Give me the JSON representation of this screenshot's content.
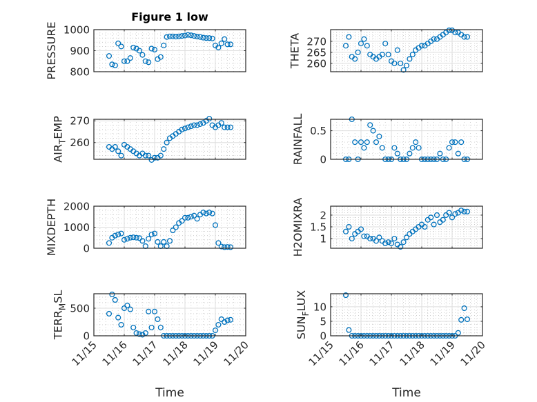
{
  "figure_title": "Figure 1 low",
  "marker_color": "#0072BD",
  "chart_data": {
    "type": "scatter",
    "xlabel": "Time",
    "x_ticks": [
      "11/15",
      "11/16",
      "11/17",
      "11/18",
      "11/19",
      "11/20"
    ],
    "x_unit": "days since 11/15",
    "xlim": [
      0,
      5
    ],
    "x": [
      0.5,
      0.6,
      0.7,
      0.8,
      0.9,
      1.0,
      1.1,
      1.2,
      1.3,
      1.4,
      1.5,
      1.6,
      1.7,
      1.8,
      1.9,
      2.0,
      2.1,
      2.2,
      2.3,
      2.4,
      2.5,
      2.6,
      2.7,
      2.8,
      2.9,
      3.0,
      3.1,
      3.2,
      3.3,
      3.4,
      3.5,
      3.6,
      3.7,
      3.8,
      3.9,
      4.0,
      4.1,
      4.2,
      4.3,
      4.4,
      4.5
    ],
    "grid": "on (major + minor)",
    "subplots": [
      {
        "ylabel": "PRESSURE",
        "column": "left",
        "row": 1,
        "ylim": [
          800,
          1000
        ],
        "yticks": [
          800,
          900,
          1000
        ],
        "values": [
          875,
          835,
          830,
          935,
          920,
          850,
          850,
          865,
          915,
          910,
          900,
          880,
          850,
          845,
          910,
          905,
          860,
          870,
          925,
          965,
          968,
          968,
          967,
          968,
          970,
          972,
          975,
          973,
          970,
          967,
          965,
          962,
          960,
          960,
          958,
          925,
          915,
          935,
          955,
          930,
          930
        ]
      },
      {
        "ylabel": "THETA",
        "column": "right",
        "row": 1,
        "ylim": [
          256.2,
          275.3
        ],
        "yticks": [
          260,
          265,
          270
        ],
        "values": [
          268,
          272,
          263,
          262,
          265,
          269,
          271,
          268,
          264,
          263,
          262,
          263,
          264,
          269,
          264,
          261,
          260,
          266,
          260,
          257,
          259,
          262,
          264,
          266,
          267,
          268,
          268,
          269,
          270,
          271,
          271,
          272,
          273,
          274,
          275,
          275,
          274,
          274,
          273,
          272,
          272
        ]
      },
      {
        "ylabel": "AIR_TEMP",
        "column": "left",
        "row": 2,
        "ylim": [
          252.3,
          270.7
        ],
        "yticks": [
          260,
          270
        ],
        "values": [
          258,
          257,
          258,
          256,
          254,
          259,
          258,
          257,
          256,
          255,
          254,
          255,
          254,
          254,
          252,
          253,
          253,
          254,
          257,
          260,
          262,
          263,
          264,
          265,
          266,
          266.5,
          267,
          267.5,
          268,
          268,
          268.5,
          269,
          270,
          271,
          268,
          267,
          268,
          269,
          267,
          267,
          267
        ]
      },
      {
        "ylabel": "RAINFALL",
        "column": "right",
        "row": 2,
        "ylim": [
          0,
          0.7
        ],
        "yticks": [
          0,
          0.5
        ],
        "values": [
          0,
          0,
          0.7,
          0.3,
          0,
          0.3,
          0.2,
          0.3,
          0.6,
          0.5,
          0.3,
          0.4,
          0.2,
          0,
          0,
          0,
          0.2,
          0.1,
          0,
          0,
          0,
          0.1,
          0.2,
          0.3,
          0.2,
          0,
          0,
          0,
          0,
          0,
          0,
          0.1,
          0,
          0,
          0.2,
          0.3,
          0.3,
          0.1,
          0.3,
          0,
          0
        ]
      },
      {
        "ylabel": "MIXDEPTH",
        "column": "left",
        "row": 3,
        "ylim": [
          0,
          2000
        ],
        "yticks": [
          0,
          1000,
          2000
        ],
        "values": [
          250,
          500,
          600,
          650,
          700,
          400,
          450,
          500,
          520,
          500,
          480,
          350,
          100,
          450,
          650,
          700,
          300,
          100,
          300,
          100,
          350,
          850,
          1000,
          1200,
          1300,
          1450,
          1450,
          1500,
          1550,
          1400,
          1600,
          1700,
          1650,
          1700,
          1650,
          1100,
          250,
          80,
          50,
          60,
          50
        ]
      },
      {
        "ylabel": "H2OMIXRA",
        "column": "right",
        "row": 3,
        "ylim": [
          0.59,
          2.38
        ],
        "yticks": [
          1,
          1.5,
          2
        ],
        "values": [
          1.3,
          1.5,
          1.0,
          1.2,
          1.3,
          1.4,
          1.1,
          1.1,
          1.0,
          1.0,
          0.9,
          1.05,
          0.9,
          0.8,
          0.85,
          0.8,
          1.0,
          0.75,
          0.65,
          0.85,
          1.05,
          1.2,
          1.3,
          1.4,
          1.5,
          1.6,
          1.5,
          1.8,
          1.9,
          1.6,
          2.0,
          1.7,
          1.8,
          2.0,
          2.1,
          1.9,
          2.05,
          2.1,
          2.2,
          2.15,
          2.15
        ]
      },
      {
        "ylabel": "TERR_MSL",
        "column": "left",
        "row": 4,
        "ylim": [
          0,
          762
        ],
        "yticks": [
          0,
          500
        ],
        "values": [
          400,
          750,
          650,
          330,
          200,
          500,
          550,
          480,
          150,
          50,
          30,
          20,
          50,
          440,
          150,
          440,
          300,
          150,
          0,
          0,
          0,
          0,
          0,
          0,
          0,
          0,
          0,
          0,
          0,
          0,
          0,
          0,
          0,
          0,
          0,
          100,
          200,
          300,
          250,
          280,
          290
        ]
      },
      {
        "ylabel": "SUN_FLUX",
        "column": "right",
        "row": 4,
        "ylim": [
          0,
          14.5
        ],
        "yticks": [
          0,
          5,
          10
        ],
        "values": [
          14,
          2,
          0,
          0,
          0,
          0,
          0,
          0,
          0,
          0,
          0,
          0,
          0,
          0,
          0,
          0,
          0,
          0,
          0,
          0,
          0,
          0,
          0,
          0,
          0,
          0,
          0,
          0,
          0,
          0,
          0,
          0,
          0,
          0,
          0,
          0,
          0,
          1,
          5.5,
          9.5,
          5.7
        ]
      }
    ]
  }
}
